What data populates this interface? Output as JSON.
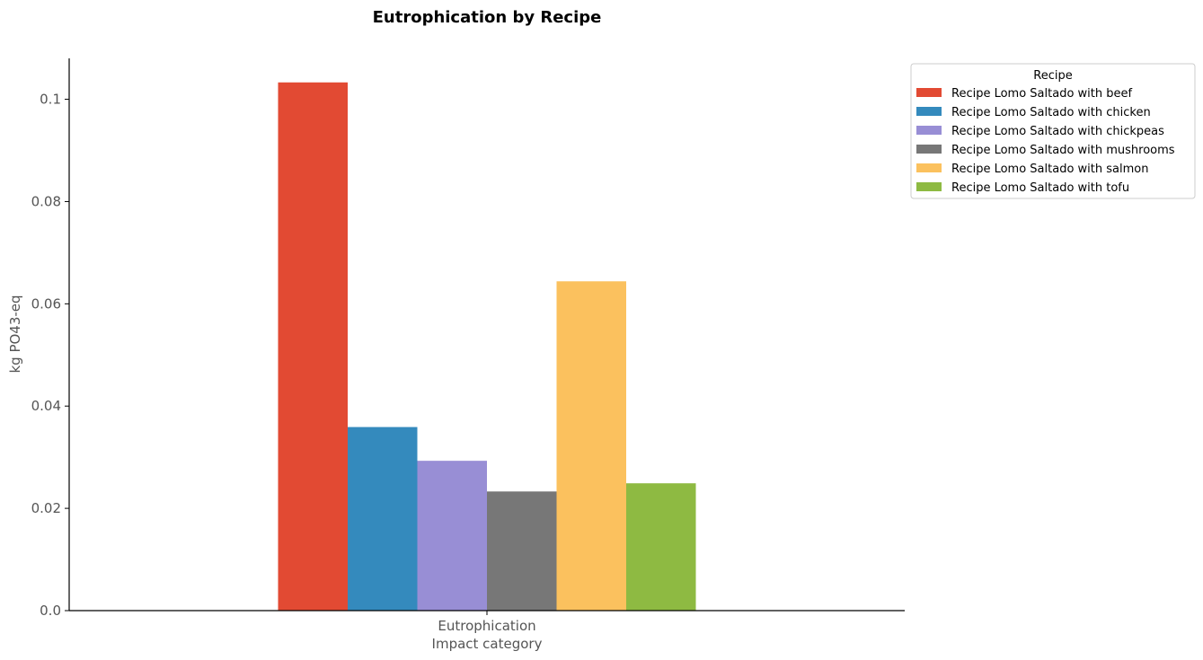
{
  "chart_data": {
    "type": "bar",
    "title": "Eutrophication by Recipe",
    "xlabel": "Impact category",
    "ylabel": "kg PO43-eq",
    "categories": [
      "Eutrophication"
    ],
    "ylim": [
      0,
      0.108
    ],
    "yticks": [
      0.0,
      0.02,
      0.04,
      0.06,
      0.08,
      0.1
    ],
    "ytick_labels": [
      "0.0",
      "0.02",
      "0.04",
      "0.06",
      "0.08",
      "0.1"
    ],
    "grid": false,
    "legend": {
      "title": "Recipe",
      "placement": "upper-right-outside"
    },
    "series": [
      {
        "name": "Recipe Lomo Saltado with beef",
        "values": [
          0.1033
        ],
        "color": "#E24A33"
      },
      {
        "name": "Recipe Lomo Saltado with chicken",
        "values": [
          0.0359
        ],
        "color": "#348ABD"
      },
      {
        "name": "Recipe Lomo Saltado with chickpeas",
        "values": [
          0.0293
        ],
        "color": "#988ED5"
      },
      {
        "name": "Recipe Lomo Saltado with mushrooms",
        "values": [
          0.0233
        ],
        "color": "#777777"
      },
      {
        "name": "Recipe Lomo Saltado with salmon",
        "values": [
          0.0644
        ],
        "color": "#FBC15E"
      },
      {
        "name": "Recipe Lomo Saltado with tofu",
        "values": [
          0.0249
        ],
        "color": "#8EBA42"
      }
    ]
  }
}
